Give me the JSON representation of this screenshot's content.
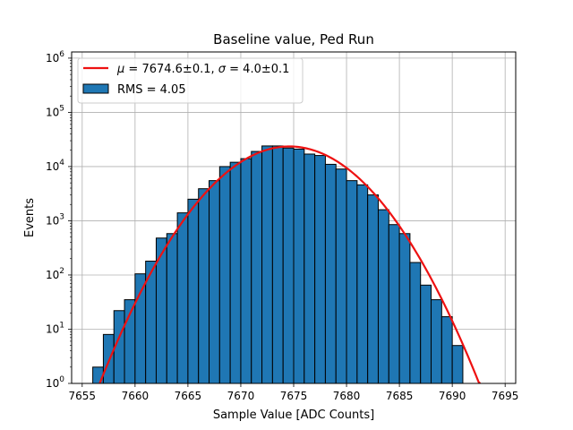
{
  "chart_data": {
    "type": "bar",
    "title": "Baseline value, Ped Run",
    "xlabel": "Sample Value [ADC Counts]",
    "ylabel": "Events",
    "xlim": [
      7654,
      7696
    ],
    "ylim": [
      1,
      1300000
    ],
    "yscale": "log",
    "grid": true,
    "legend_placement": "top-left",
    "bin_width": 1,
    "x_ticks": [
      "7655",
      "7660",
      "7665",
      "7670",
      "7675",
      "7680",
      "7685",
      "7690",
      "7695"
    ],
    "y_ticks": [
      {
        "base": "10",
        "exp": "0"
      },
      {
        "base": "10",
        "exp": "1"
      },
      {
        "base": "10",
        "exp": "2"
      },
      {
        "base": "10",
        "exp": "3"
      },
      {
        "base": "10",
        "exp": "4"
      },
      {
        "base": "10",
        "exp": "5"
      },
      {
        "base": "10",
        "exp": "6"
      }
    ],
    "histogram": {
      "label": "RMS = 4.05",
      "color": "#1f77b4",
      "edge_color": "#000000",
      "bins": [
        {
          "x": 7656,
          "value": 2
        },
        {
          "x": 7657,
          "value": 8
        },
        {
          "x": 7658,
          "value": 22
        },
        {
          "x": 7659,
          "value": 35
        },
        {
          "x": 7660,
          "value": 105
        },
        {
          "x": 7661,
          "value": 180
        },
        {
          "x": 7662,
          "value": 480
        },
        {
          "x": 7663,
          "value": 580
        },
        {
          "x": 7664,
          "value": 1400
        },
        {
          "x": 7665,
          "value": 2500
        },
        {
          "x": 7666,
          "value": 3900
        },
        {
          "x": 7667,
          "value": 5500
        },
        {
          "x": 7668,
          "value": 10000
        },
        {
          "x": 7669,
          "value": 12000
        },
        {
          "x": 7670,
          "value": 14000
        },
        {
          "x": 7671,
          "value": 19000
        },
        {
          "x": 7672,
          "value": 24000
        },
        {
          "x": 7673,
          "value": 24000
        },
        {
          "x": 7674,
          "value": 22000
        },
        {
          "x": 7675,
          "value": 21000
        },
        {
          "x": 7676,
          "value": 17000
        },
        {
          "x": 7677,
          "value": 16000
        },
        {
          "x": 7678,
          "value": 11000
        },
        {
          "x": 7679,
          "value": 9000
        },
        {
          "x": 7680,
          "value": 5500
        },
        {
          "x": 7681,
          "value": 4600
        },
        {
          "x": 7682,
          "value": 3000
        },
        {
          "x": 7683,
          "value": 1600
        },
        {
          "x": 7684,
          "value": 850
        },
        {
          "x": 7685,
          "value": 580
        },
        {
          "x": 7686,
          "value": 170
        },
        {
          "x": 7687,
          "value": 65
        },
        {
          "x": 7688,
          "value": 35
        },
        {
          "x": 7689,
          "value": 17
        },
        {
          "x": 7690,
          "value": 5
        }
      ]
    },
    "fit": {
      "type": "gaussian",
      "label_parts": [
        {
          "text": "μ",
          "italic": true
        },
        {
          "text": " = 7674.6±0.1, ",
          "italic": false
        },
        {
          "text": "σ",
          "italic": true
        },
        {
          "text": " = 4.0±0.1",
          "italic": false
        }
      ],
      "color": "#ee1111",
      "mu": 7674.6,
      "sigma": 4.0,
      "amplitude": 23500,
      "x_range": [
        7654,
        7696
      ]
    }
  }
}
